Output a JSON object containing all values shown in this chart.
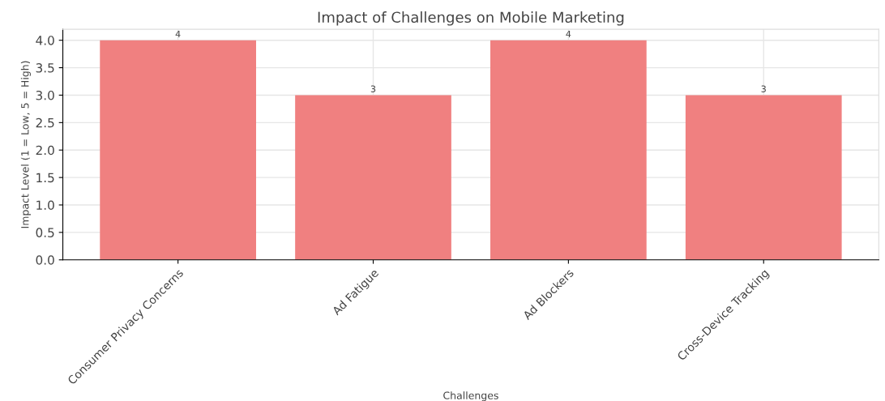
{
  "chart_data": {
    "type": "bar",
    "title": "Impact of Challenges on Mobile Marketing",
    "xlabel": "Challenges",
    "ylabel": "Impact Level (1 = Low, 5 = High)",
    "categories": [
      "Consumer Privacy Concerns",
      "Ad Fatigue",
      "Ad Blockers",
      "Cross-Device Tracking"
    ],
    "values": [
      4,
      3,
      4,
      3
    ],
    "color": "#f08080",
    "data_labels": true,
    "ylim": [
      0,
      4.2
    ],
    "yticks": [
      {
        "value": 0,
        "label": "0.0"
      },
      {
        "value": 0.5,
        "label": "0.5"
      },
      {
        "value": 1,
        "label": "1.0"
      },
      {
        "value": 1.5,
        "label": "1.5"
      },
      {
        "value": 2,
        "label": "2.0"
      },
      {
        "value": 2.5,
        "label": "2.5"
      },
      {
        "value": 3,
        "label": "3.0"
      },
      {
        "value": 3.5,
        "label": "3.5"
      },
      {
        "value": 4,
        "label": "4.0"
      }
    ],
    "grid": true
  }
}
